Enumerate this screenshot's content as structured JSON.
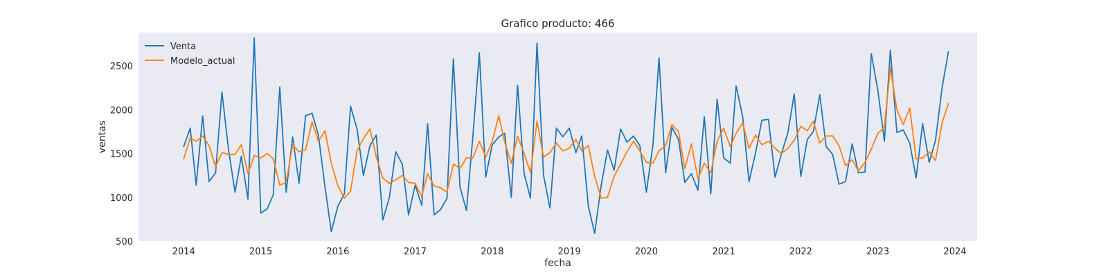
{
  "chart_data": {
    "type": "line",
    "title": "Grafico producto: 466",
    "xlabel": "fecha",
    "ylabel": "ventas",
    "xlim": [
      "2013-06-01",
      "2024-04-15"
    ],
    "ylim": [
      500,
      2880
    ],
    "yticks": [
      500,
      1000,
      1500,
      2000,
      2500
    ],
    "xticks": [
      "2014",
      "2015",
      "2016",
      "2017",
      "2018",
      "2019",
      "2020",
      "2021",
      "2022",
      "2023",
      "2024"
    ],
    "grid": false,
    "legend_position": "top-left",
    "x": [
      "2014-01",
      "2014-02",
      "2014-03",
      "2014-04",
      "2014-05",
      "2014-06",
      "2014-07",
      "2014-08",
      "2014-09",
      "2014-10",
      "2014-11",
      "2014-12",
      "2015-01",
      "2015-02",
      "2015-03",
      "2015-04",
      "2015-05",
      "2015-06",
      "2015-07",
      "2015-08",
      "2015-09",
      "2015-10",
      "2015-11",
      "2015-12",
      "2016-01",
      "2016-02",
      "2016-03",
      "2016-04",
      "2016-05",
      "2016-06",
      "2016-07",
      "2016-08",
      "2016-09",
      "2016-10",
      "2016-11",
      "2016-12",
      "2017-01",
      "2017-02",
      "2017-03",
      "2017-04",
      "2017-05",
      "2017-06",
      "2017-07",
      "2017-08",
      "2017-09",
      "2017-10",
      "2017-11",
      "2017-12",
      "2018-01",
      "2018-02",
      "2018-03",
      "2018-04",
      "2018-05",
      "2018-06",
      "2018-07",
      "2018-08",
      "2018-09",
      "2018-10",
      "2018-11",
      "2018-12",
      "2019-01",
      "2019-02",
      "2019-03",
      "2019-04",
      "2019-05",
      "2019-06",
      "2019-07",
      "2019-08",
      "2019-09",
      "2019-10",
      "2019-11",
      "2019-12",
      "2020-01",
      "2020-02",
      "2020-03",
      "2020-04",
      "2020-05",
      "2020-06",
      "2020-07",
      "2020-08",
      "2020-09",
      "2020-10",
      "2020-11",
      "2020-12",
      "2021-01",
      "2021-02",
      "2021-03",
      "2021-04",
      "2021-05",
      "2021-06",
      "2021-07",
      "2021-08",
      "2021-09",
      "2021-10",
      "2021-11",
      "2021-12",
      "2022-01",
      "2022-02",
      "2022-03",
      "2022-04",
      "2022-05",
      "2022-06",
      "2022-07",
      "2022-08",
      "2022-09",
      "2022-10",
      "2022-11",
      "2022-12",
      "2023-01",
      "2023-02",
      "2023-03",
      "2023-04",
      "2023-05",
      "2023-06",
      "2023-07",
      "2023-08",
      "2023-09",
      "2023-10",
      "2023-11",
      "2023-12"
    ],
    "series": [
      {
        "name": "Venta",
        "color": "#1f77b4",
        "values": [
          1580,
          1790,
          1140,
          1930,
          1180,
          1280,
          2200,
          1550,
          1060,
          1470,
          980,
          2820,
          820,
          870,
          1030,
          2260,
          1060,
          1690,
          1160,
          1930,
          1960,
          1710,
          1120,
          610,
          900,
          1040,
          2040,
          1780,
          1250,
          1590,
          1710,
          740,
          1000,
          1520,
          1380,
          800,
          1140,
          910,
          1840,
          800,
          860,
          990,
          2580,
          1120,
          850,
          1690,
          2650,
          1230,
          1600,
          1690,
          1730,
          1000,
          2280,
          1270,
          990,
          2760,
          1250,
          880,
          1790,
          1690,
          1790,
          1510,
          1700,
          900,
          590,
          1140,
          1540,
          1310,
          1780,
          1630,
          1700,
          1590,
          1060,
          1600,
          2590,
          1280,
          1800,
          1660,
          1170,
          1270,
          1080,
          1920,
          1040,
          2120,
          1450,
          1390,
          2270,
          1920,
          1180,
          1510,
          1880,
          1890,
          1230,
          1490,
          1740,
          2180,
          1240,
          1660,
          1750,
          2170,
          1580,
          1490,
          1150,
          1180,
          1610,
          1280,
          1290,
          2640,
          2220,
          1640,
          2680,
          1740,
          1770,
          1620,
          1220,
          1840,
          1400,
          1650,
          2250,
          2660
        ]
      },
      {
        "name": "Modelo_actual",
        "color": "#ff7f0e",
        "values": [
          1440,
          1680,
          1640,
          1700,
          1590,
          1350,
          1510,
          1490,
          1490,
          1600,
          1270,
          1480,
          1450,
          1500,
          1440,
          1140,
          1170,
          1600,
          1520,
          1540,
          1860,
          1640,
          1760,
          1390,
          1130,
          990,
          1070,
          1530,
          1670,
          1780,
          1460,
          1220,
          1160,
          1200,
          1250,
          1170,
          1160,
          1010,
          1270,
          1130,
          1110,
          1060,
          1380,
          1330,
          1450,
          1450,
          1640,
          1460,
          1640,
          1930,
          1630,
          1390,
          1700,
          1500,
          1280,
          1870,
          1460,
          1510,
          1620,
          1530,
          1560,
          1660,
          1530,
          1590,
          1240,
          990,
          1000,
          1240,
          1380,
          1520,
          1640,
          1530,
          1400,
          1390,
          1530,
          1590,
          1830,
          1750,
          1330,
          1610,
          1210,
          1390,
          1280,
          1640,
          1790,
          1580,
          1730,
          1850,
          1560,
          1710,
          1600,
          1640,
          1560,
          1500,
          1560,
          1650,
          1810,
          1760,
          1870,
          1620,
          1700,
          1700,
          1590,
          1360,
          1430,
          1300,
          1400,
          1550,
          1730,
          1800,
          2480,
          2000,
          1830,
          2020,
          1440,
          1450,
          1520,
          1420,
          1850,
          2070
        ]
      }
    ]
  }
}
